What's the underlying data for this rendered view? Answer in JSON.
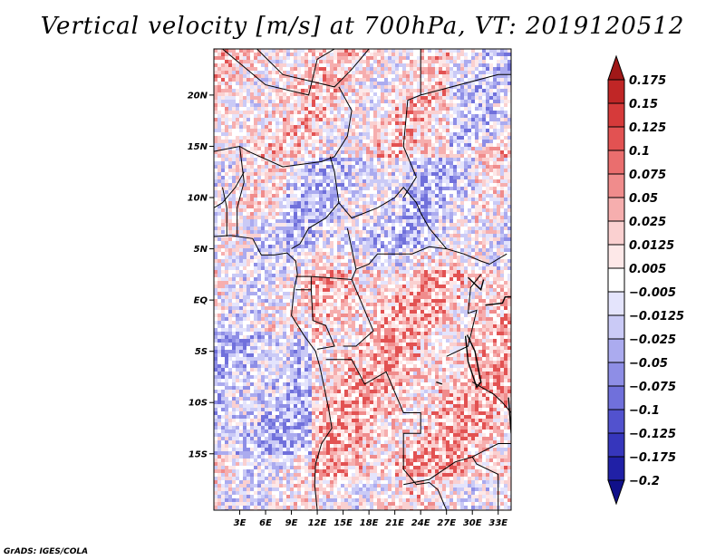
{
  "title": "Vertical velocity [m/s] at 700hPa, VT: 2019120512",
  "footer": "GrADS: IGES/COLA",
  "map": {
    "variable": "Vertical velocity",
    "units": "m/s",
    "level": "700hPa",
    "valid_time": "2019120512",
    "lon_range": [
      0,
      34.5
    ],
    "lat_range": [
      -20.5,
      24.5
    ],
    "lat_ticks": [
      {
        "value": 20,
        "label": "20N"
      },
      {
        "value": 15,
        "label": "15N"
      },
      {
        "value": 10,
        "label": "10N"
      },
      {
        "value": 5,
        "label": "5N"
      },
      {
        "value": 0,
        "label": "EQ"
      },
      {
        "value": -5,
        "label": "5S"
      },
      {
        "value": -10,
        "label": "10S"
      },
      {
        "value": -15,
        "label": "15S"
      }
    ],
    "lon_ticks": [
      {
        "value": 3,
        "label": "3E"
      },
      {
        "value": 6,
        "label": "6E"
      },
      {
        "value": 9,
        "label": "9E"
      },
      {
        "value": 12,
        "label": "12E"
      },
      {
        "value": 15,
        "label": "15E"
      },
      {
        "value": 18,
        "label": "18E"
      },
      {
        "value": 21,
        "label": "21E"
      },
      {
        "value": 24,
        "label": "24E"
      },
      {
        "value": 27,
        "label": "27E"
      },
      {
        "value": 30,
        "label": "30E"
      },
      {
        "value": 33,
        "label": "33E"
      }
    ]
  },
  "colorbar": {
    "levels": [
      "0.175",
      "0.15",
      "0.125",
      "0.1",
      "0.075",
      "0.05",
      "0.025",
      "0.0125",
      "0.005",
      "-0.005",
      "-0.0125",
      "-0.025",
      "-0.05",
      "-0.075",
      "-0.1",
      "-0.125",
      "-0.175",
      "-0.2"
    ],
    "colors": [
      "#a01818",
      "#c02626",
      "#d63a3a",
      "#e25252",
      "#ea6e6e",
      "#f08c8c",
      "#f6aeae",
      "#fad0d0",
      "#fde8e8",
      "#ffffff",
      "#e4e4fc",
      "#cacaf6",
      "#ababef",
      "#8e8ee6",
      "#7070db",
      "#5252ce",
      "#3636bc",
      "#2020a6",
      "#10108a"
    ]
  }
}
